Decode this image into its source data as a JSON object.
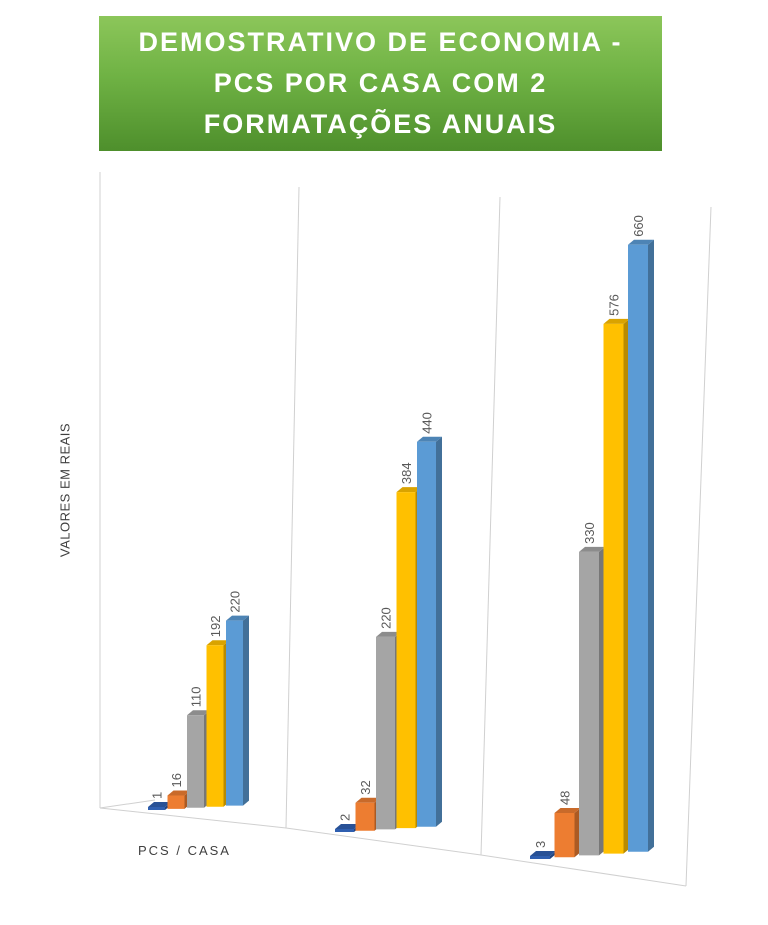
{
  "chart_data": {
    "type": "bar",
    "title": [
      "DEMOSTRATIVO DE ECONOMIA -",
      "PCS POR CASA COM 2",
      "FORMATAÇÕES ANUAIS"
    ],
    "ylabel": "VALORES EM REAIS",
    "xlabel": "PCS / CASA",
    "groups": 3,
    "series": [
      {
        "color": "#2f5fb0",
        "values": [
          1,
          2,
          3
        ]
      },
      {
        "color": "#ed7d31",
        "values": [
          16,
          32,
          48
        ]
      },
      {
        "color": "#a5a5a5",
        "values": [
          110,
          220,
          330
        ]
      },
      {
        "color": "#ffc000",
        "values": [
          192,
          384,
          576
        ]
      },
      {
        "color": "#5b9bd5",
        "values": [
          220,
          440,
          660
        ]
      }
    ],
    "ylim": [
      0,
      660
    ],
    "grid": false,
    "legend": "none"
  }
}
